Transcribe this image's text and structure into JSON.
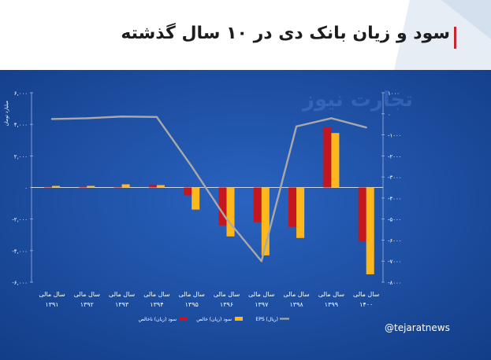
{
  "header": {
    "title": "سود و زیان بانک دی در ۱۰ سال گذشته"
  },
  "watermark": "تجارت نیوز",
  "credit": "@tejaratnews",
  "colors": {
    "net_profit_loss": "#c4161c",
    "gross_profit_loss": "#ffb81c",
    "eps": "#a9a9a9",
    "background": "#1d4fa6",
    "title_accent": "#c9252c"
  },
  "chart_data": {
    "type": "bar",
    "categories": [
      "سال مالی ۱۳۹۱",
      "سال مالی ۱۳۹۲",
      "سال مالی ۱۳۹۳",
      "سال مالی ۱۳۹۴",
      "سال مالی ۱۳۹۵",
      "سال مالی ۱۳۹۶",
      "سال مالی ۱۳۹۷",
      "سال مالی ۱۳۹۸",
      "سال مالی ۱۳۹۹",
      "سال مالی ۱۴۰۰"
    ],
    "category_lines": [
      [
        "سال مالی",
        "۱۳۹۱"
      ],
      [
        "سال مالی",
        "۱۳۹۲"
      ],
      [
        "سال مالی",
        "۱۳۹۳"
      ],
      [
        "سال مالی",
        "۱۳۹۴"
      ],
      [
        "سال مالی",
        "۱۳۹۵"
      ],
      [
        "سال مالی",
        "۱۳۹۶"
      ],
      [
        "سال مالی",
        "۱۳۹۷"
      ],
      [
        "سال مالی",
        "۱۳۹۸"
      ],
      [
        "سال مالی",
        "۱۳۹۹"
      ],
      [
        "سال مالی",
        "۱۴۰۰"
      ]
    ],
    "series": [
      {
        "name": "سود (زیان) ناخالص",
        "values": [
          50,
          80,
          0,
          180,
          -500,
          -2400,
          -2200,
          -2500,
          3800,
          -3400
        ]
      },
      {
        "name": "سود (زیان) خالص",
        "values": [
          100,
          100,
          200,
          150,
          -1400,
          -3100,
          -4300,
          -3200,
          3450,
          -5500
        ]
      },
      {
        "name": "EPS (ریال)",
        "axis": "right",
        "values": [
          -250,
          -210,
          -130,
          -150,
          -2500,
          -5000,
          -7000,
          -600,
          -210,
          -650
        ]
      }
    ],
    "y_left": {
      "label": "میلیارد تومان",
      "range": [
        -6000,
        6000
      ],
      "ticks": [
        "۶,۰۰۰",
        "۴,۰۰۰",
        "۲,۰۰۰",
        "۰",
        "-۲,۰۰۰",
        "-۴,۰۰۰",
        "-۶,۰۰۰"
      ]
    },
    "y_right": {
      "range": [
        -8000,
        1000
      ],
      "ticks": [
        "۱۰۰۰",
        "۰",
        "-۱۰۰۰",
        "-۲۰۰۰",
        "-۳۰۰۰",
        "-۴۰۰۰",
        "-۵۰۰۰",
        "-۶۰۰۰",
        "-۷۰۰۰",
        "-۸۰۰۰"
      ]
    },
    "legend": [
      {
        "name": "سود (زیان) ناخالص",
        "color": "#c4161c"
      },
      {
        "name": "سود (زیان) خالص",
        "color": "#ffb81c"
      },
      {
        "name": "EPS (ریال)",
        "color": "#a9a9a9"
      }
    ],
    "legend_position": "bottom"
  }
}
